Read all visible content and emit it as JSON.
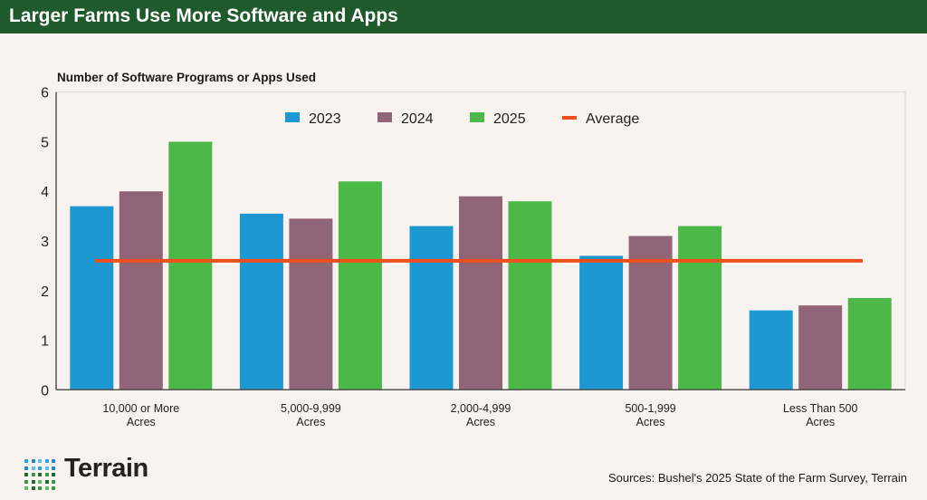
{
  "header": {
    "title": "Larger Farms Use More Software and Apps"
  },
  "footer": {
    "source": "Sources: Bushel's 2025 State of the Farm Survey, Terrain",
    "logo_text": "Terrain"
  },
  "chart_data": {
    "type": "bar",
    "title": "Larger Farms Use More Software and Apps",
    "ylabel": "Number of Software Programs or Apps Used",
    "xlabel": "",
    "ylim": [
      0,
      6
    ],
    "yticks": [
      "0",
      "1",
      "2",
      "3",
      "4",
      "5",
      "6"
    ],
    "categories": [
      [
        "10,000 or More",
        "Acres"
      ],
      [
        "5,000-9,999",
        "Acres"
      ],
      [
        "2,000-4,999",
        "Acres"
      ],
      [
        "500-1,999",
        "Acres"
      ],
      [
        "Less Than 500",
        "Acres"
      ]
    ],
    "series": [
      {
        "name": "2023",
        "color": "#1e98d3",
        "values": [
          3.7,
          3.55,
          3.3,
          2.7,
          1.6
        ]
      },
      {
        "name": "2024",
        "color": "#8f6577",
        "values": [
          4.0,
          3.45,
          3.9,
          3.1,
          1.7
        ]
      },
      {
        "name": "2025",
        "color": "#4bb847",
        "values": [
          5.0,
          4.2,
          3.8,
          3.3,
          1.85
        ]
      }
    ],
    "reference_line": {
      "name": "Average",
      "value": 2.6,
      "color": "#f04e1a"
    },
    "legend_position": "top-center",
    "grid": false
  }
}
